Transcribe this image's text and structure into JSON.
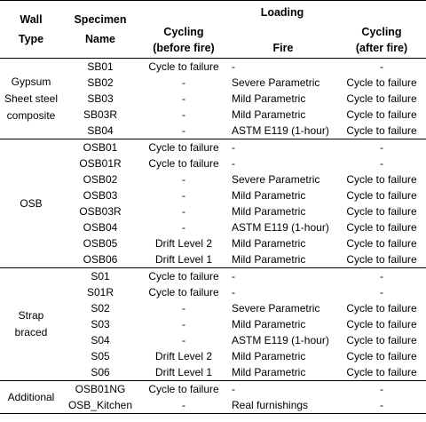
{
  "header": {
    "wall_type": [
      "Wall",
      "Type"
    ],
    "specimen_name": [
      "Specimen",
      "Name"
    ],
    "loading": "Loading",
    "cycling_before": [
      "Cycling",
      "(before fire)"
    ],
    "fire": "Fire",
    "cycling_after": [
      "Cycling",
      "(after fire)"
    ]
  },
  "groups": [
    {
      "type_lines": [
        "Gypsum",
        "Sheet steel",
        "composite"
      ],
      "rows": [
        {
          "name": "SB01",
          "before": "Cycle to failure",
          "fire": "-",
          "after": "-"
        },
        {
          "name": "SB02",
          "before": "-",
          "fire": "Severe Parametric",
          "after": "Cycle to failure"
        },
        {
          "name": "SB03",
          "before": "-",
          "fire": "Mild Parametric",
          "after": "Cycle to failure"
        },
        {
          "name": "SB03R",
          "before": "-",
          "fire": "Mild Parametric",
          "after": "Cycle to failure"
        },
        {
          "name": "SB04",
          "before": "-",
          "fire": "ASTM E119 (1-hour)",
          "after": "Cycle to failure"
        }
      ]
    },
    {
      "type_lines": [
        "OSB"
      ],
      "rows": [
        {
          "name": "OSB01",
          "before": "Cycle to failure",
          "fire": "-",
          "after": "-"
        },
        {
          "name": "OSB01R",
          "before": "Cycle to failure",
          "fire": "-",
          "after": "-"
        },
        {
          "name": "OSB02",
          "before": "-",
          "fire": "Severe Parametric",
          "after": "Cycle to failure"
        },
        {
          "name": "OSB03",
          "before": "-",
          "fire": "Mild Parametric",
          "after": "Cycle to failure"
        },
        {
          "name": "OSB03R",
          "before": "-",
          "fire": "Mild Parametric",
          "after": "Cycle to failure"
        },
        {
          "name": "OSB04",
          "before": "-",
          "fire": "ASTM E119 (1-hour)",
          "after": "Cycle to failure"
        },
        {
          "name": "OSB05",
          "before": "Drift Level 2",
          "fire": "Mild Parametric",
          "after": "Cycle to failure"
        },
        {
          "name": "OSB06",
          "before": "Drift Level 1",
          "fire": "Mild Parametric",
          "after": "Cycle to failure"
        }
      ]
    },
    {
      "type_lines": [
        "Strap",
        "braced"
      ],
      "rows": [
        {
          "name": "S01",
          "before": "Cycle to failure",
          "fire": "-",
          "after": "-"
        },
        {
          "name": "S01R",
          "before": "Cycle to failure",
          "fire": "-",
          "after": "-"
        },
        {
          "name": "S02",
          "before": "-",
          "fire": "Severe Parametric",
          "after": "Cycle to failure"
        },
        {
          "name": "S03",
          "before": "-",
          "fire": "Mild Parametric",
          "after": "Cycle to failure"
        },
        {
          "name": "S04",
          "before": "-",
          "fire": "ASTM E119 (1-hour)",
          "after": "Cycle to failure"
        },
        {
          "name": "S05",
          "before": "Drift Level 2",
          "fire": "Mild Parametric",
          "after": "Cycle to failure"
        },
        {
          "name": "S06",
          "before": "Drift Level 1",
          "fire": "Mild Parametric",
          "after": "Cycle to failure"
        }
      ]
    },
    {
      "type_lines": [
        "Additional"
      ],
      "rows": [
        {
          "name": "OSB01NG",
          "before": "Cycle to failure",
          "fire": "-",
          "after": "-"
        },
        {
          "name": "OSB_Kitchen",
          "before": "-",
          "fire": "Real furnishings",
          "after": "-"
        }
      ]
    }
  ]
}
